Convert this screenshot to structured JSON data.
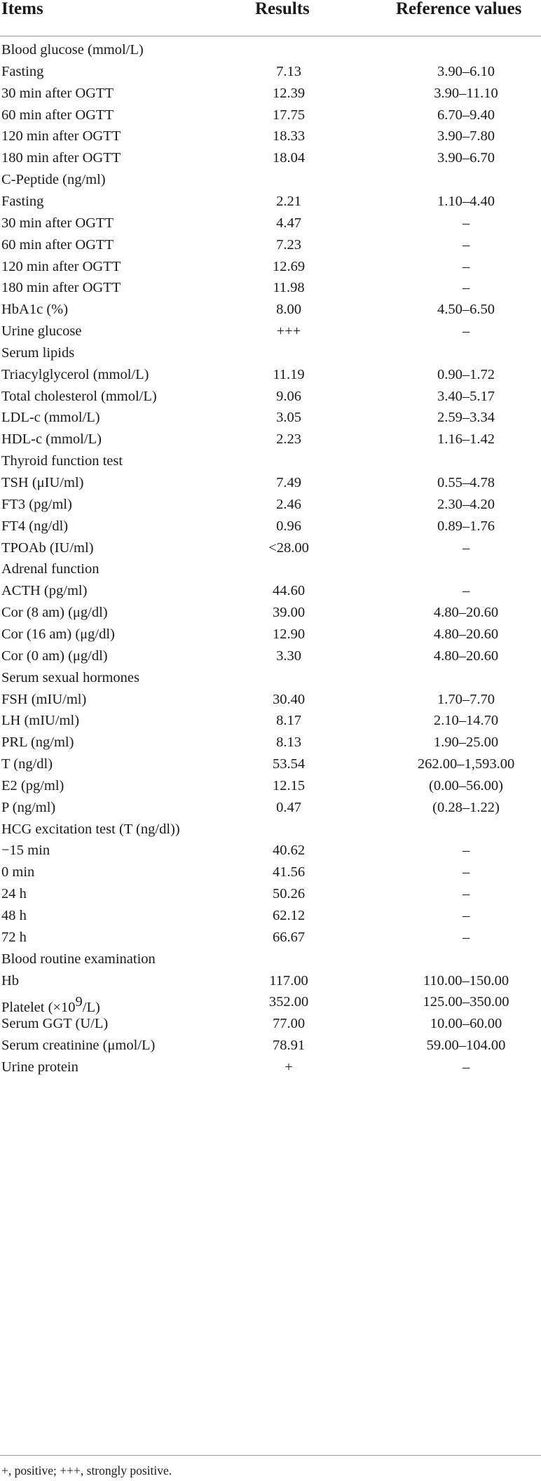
{
  "table": {
    "headers": {
      "items": "Items",
      "results": "Results",
      "reference": "Reference values"
    },
    "rows": [
      {
        "item": "Blood glucose (mmol/L)",
        "result": "",
        "reference": ""
      },
      {
        "item": "Fasting",
        "result": "7.13",
        "reference": "3.90–6.10"
      },
      {
        "item": "30 min after OGTT",
        "result": "12.39",
        "reference": "3.90–11.10"
      },
      {
        "item": "60 min after OGTT",
        "result": "17.75",
        "reference": "6.70–9.40"
      },
      {
        "item": "120 min after OGTT",
        "result": "18.33",
        "reference": "3.90–7.80"
      },
      {
        "item": "180 min after OGTT",
        "result": "18.04",
        "reference": "3.90–6.70"
      },
      {
        "item": "C-Peptide (ng/ml)",
        "result": "",
        "reference": ""
      },
      {
        "item": "Fasting",
        "result": "2.21",
        "reference": "1.10–4.40"
      },
      {
        "item": "30 min after OGTT",
        "result": "4.47",
        "reference": "–"
      },
      {
        "item": "60 min after OGTT",
        "result": "7.23",
        "reference": "–"
      },
      {
        "item": "120 min after OGTT",
        "result": "12.69",
        "reference": "–"
      },
      {
        "item": "180 min after OGTT",
        "result": "11.98",
        "reference": "–"
      },
      {
        "item": "HbA1c (%)",
        "result": "8.00",
        "reference": "4.50–6.50"
      },
      {
        "item": "Urine glucose",
        "result": "+++",
        "reference": "–"
      },
      {
        "item": "Serum lipids",
        "result": "",
        "reference": ""
      },
      {
        "item": "Triacylglycerol (mmol/L)",
        "result": "11.19",
        "reference": "0.90–1.72"
      },
      {
        "item": "Total cholesterol (mmol/L)",
        "result": "9.06",
        "reference": "3.40–5.17"
      },
      {
        "item": "LDL-c (mmol/L)",
        "result": "3.05",
        "reference": "2.59–3.34"
      },
      {
        "item": "HDL-c (mmol/L)",
        "result": "2.23",
        "reference": "1.16–1.42"
      },
      {
        "item": "Thyroid function test",
        "result": "",
        "reference": ""
      },
      {
        "item": "TSH (μIU/ml)",
        "result": "7.49",
        "reference": "0.55–4.78"
      },
      {
        "item": "FT3 (pg/ml)",
        "result": "2.46",
        "reference": "2.30–4.20"
      },
      {
        "item": "FT4 (ng/dl)",
        "result": "0.96",
        "reference": "0.89–1.76"
      },
      {
        "item": "TPOAb (IU/ml)",
        "result": "<28.00",
        "reference": "–"
      },
      {
        "item": "Adrenal function",
        "result": "",
        "reference": ""
      },
      {
        "item": "ACTH (pg/ml)",
        "result": "44.60",
        "reference": "–"
      },
      {
        "item": "Cor (8 am) (μg/dl)",
        "result": "39.00",
        "reference": "4.80–20.60"
      },
      {
        "item": "Cor (16 am) (μg/dl)",
        "result": "12.90",
        "reference": "4.80–20.60"
      },
      {
        "item": "Cor (0 am) (μg/dl)",
        "result": "3.30",
        "reference": "4.80–20.60"
      },
      {
        "item": "Serum sexual hormones",
        "result": "",
        "reference": ""
      },
      {
        "item": "FSH (mIU/ml)",
        "result": "30.40",
        "reference": "1.70–7.70"
      },
      {
        "item": "LH (mIU/ml)",
        "result": "8.17",
        "reference": "2.10–14.70"
      },
      {
        "item": "PRL (ng/ml)",
        "result": "8.13",
        "reference": "1.90–25.00"
      },
      {
        "item": "T (ng/dl)",
        "result": "53.54",
        "reference": "262.00–1,593.00"
      },
      {
        "item": "E2 (pg/ml)",
        "result": "12.15",
        "reference": "(0.00–56.00)"
      },
      {
        "item": "P (ng/ml)",
        "result": "0.47",
        "reference": "(0.28–1.22)"
      },
      {
        "item": "HCG excitation test (T (ng/dl))",
        "result": "",
        "reference": ""
      },
      {
        "item": "−15 min",
        "result": "40.62",
        "reference": "–"
      },
      {
        "item": "0 min",
        "result": "41.56",
        "reference": "–"
      },
      {
        "item": "24 h",
        "result": "50.26",
        "reference": "–"
      },
      {
        "item": "48 h",
        "result": "62.12",
        "reference": "–"
      },
      {
        "item": "72 h",
        "result": "66.67",
        "reference": "–"
      },
      {
        "item": "Blood routine examination",
        "result": "",
        "reference": ""
      },
      {
        "item": "Hb",
        "result": "117.00",
        "reference": "110.00–150.00"
      },
      {
        "item": "Platelet (×10",
        "item_sup": "9",
        "item_tail": "/L)",
        "result": "352.00",
        "reference": "125.00–350.00"
      },
      {
        "item": "Serum GGT (U/L)",
        "result": "77.00",
        "reference": "10.00–60.00"
      },
      {
        "item": "Serum creatinine (μmol/L)",
        "result": "78.91",
        "reference": "59.00–104.00"
      },
      {
        "item": "Urine protein",
        "result": "+",
        "reference": "–"
      }
    ]
  },
  "footnote": "+, positive; +++, strongly positive."
}
